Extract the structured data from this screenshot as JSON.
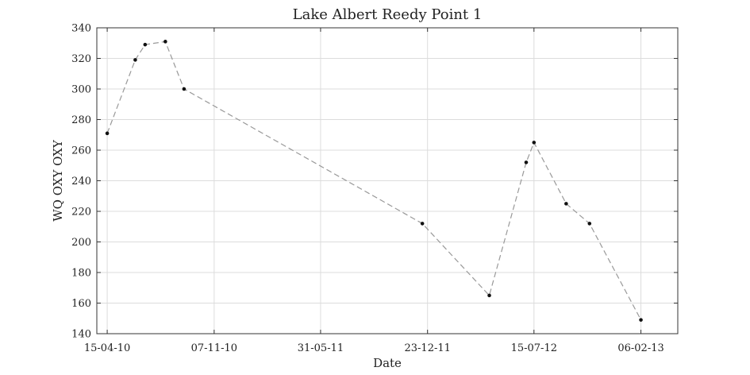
{
  "chart_data": {
    "type": "line",
    "title": "Lake Albert Reedy Point 1",
    "xlabel": "Date",
    "ylabel": "WQ OXY OXY",
    "x_type": "date",
    "xlim": [
      "2010-03-26",
      "2013-04-18"
    ],
    "ylim": [
      140,
      340
    ],
    "x_ticks": [
      {
        "date": "2010-04-15",
        "label": "15-04-10"
      },
      {
        "date": "2010-11-07",
        "label": "07-11-10"
      },
      {
        "date": "2011-05-31",
        "label": "31-05-11"
      },
      {
        "date": "2011-12-23",
        "label": "23-12-11"
      },
      {
        "date": "2012-07-15",
        "label": "15-07-12"
      },
      {
        "date": "2013-02-06",
        "label": "06-02-13"
      }
    ],
    "y_ticks": [
      140,
      160,
      180,
      200,
      220,
      240,
      260,
      280,
      300,
      320,
      340
    ],
    "grid": true,
    "series": [
      {
        "color": "#999999",
        "marker_color": "#111111",
        "line_style": "dashed",
        "points": [
          {
            "x": "2010-04-15",
            "y": 271
          },
          {
            "x": "2010-06-08",
            "y": 319
          },
          {
            "x": "2010-06-27",
            "y": 329
          },
          {
            "x": "2010-08-05",
            "y": 331
          },
          {
            "x": "2010-09-10",
            "y": 300
          },
          {
            "x": "2011-12-13",
            "y": 212
          },
          {
            "x": "2012-04-20",
            "y": 165
          },
          {
            "x": "2012-06-30",
            "y": 252
          },
          {
            "x": "2012-07-15",
            "y": 265
          },
          {
            "x": "2012-09-15",
            "y": 225
          },
          {
            "x": "2012-10-30",
            "y": 212
          },
          {
            "x": "2013-02-06",
            "y": 149
          }
        ]
      }
    ]
  }
}
